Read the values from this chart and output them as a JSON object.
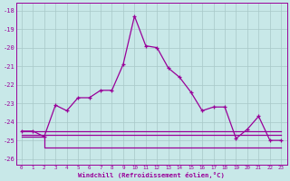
{
  "xlabel": "Windchill (Refroidissement éolien,°C)",
  "hours": [
    0,
    1,
    2,
    3,
    4,
    5,
    6,
    7,
    8,
    9,
    10,
    11,
    12,
    13,
    14,
    15,
    16,
    17,
    18,
    19,
    20,
    21,
    22,
    23
  ],
  "windchill": [
    -24.5,
    -24.5,
    -24.8,
    -23.1,
    -23.4,
    -22.7,
    -22.7,
    -22.3,
    -22.3,
    -20.9,
    -18.3,
    -19.9,
    -20.0,
    -21.1,
    -21.6,
    -22.4,
    -23.4,
    -23.2,
    -23.2,
    -24.9,
    -24.4,
    -23.7,
    -25.0,
    -25.0
  ],
  "ref_line1": [
    -24.5,
    -24.5,
    -24.5,
    -24.5,
    -24.5,
    -24.5,
    -24.5,
    -24.5,
    -24.5,
    -24.5,
    -24.5,
    -24.5,
    -24.5,
    -24.5,
    -24.5,
    -24.5,
    -24.5,
    -24.5,
    -24.5,
    -24.5,
    -24.5,
    -24.5,
    -24.5,
    -24.5
  ],
  "ref_line2": [
    -24.7,
    -24.7,
    -24.7,
    -24.7,
    -24.7,
    -24.7,
    -24.7,
    -24.7,
    -24.7,
    -24.7,
    -24.7,
    -24.7,
    -24.7,
    -24.7,
    -24.7,
    -24.7,
    -24.7,
    -24.7,
    -24.7,
    -24.7,
    -24.7,
    -24.7,
    -24.7,
    -24.7
  ],
  "ref_line3": [
    -24.8,
    -24.8,
    -25.4,
    -25.4,
    -25.4,
    -25.4,
    -25.4,
    -25.4,
    -25.4,
    -25.4,
    -25.4,
    -25.4,
    -25.4,
    -25.4,
    -25.4,
    -25.4,
    -25.4,
    -25.4,
    -25.4,
    -25.4,
    -25.4,
    -25.4,
    -25.4,
    -25.4
  ],
  "line_color": "#990099",
  "bg_color": "#c8e8e8",
  "grid_color": "#a8c8c8",
  "ylim": [
    -26.3,
    -17.6
  ],
  "yticks": [
    -26,
    -25,
    -24,
    -23,
    -22,
    -21,
    -20,
    -19,
    -18
  ],
  "xticks": [
    0,
    1,
    2,
    3,
    4,
    5,
    6,
    7,
    8,
    9,
    10,
    11,
    12,
    13,
    14,
    15,
    16,
    17,
    18,
    19,
    20,
    21,
    22,
    23
  ]
}
